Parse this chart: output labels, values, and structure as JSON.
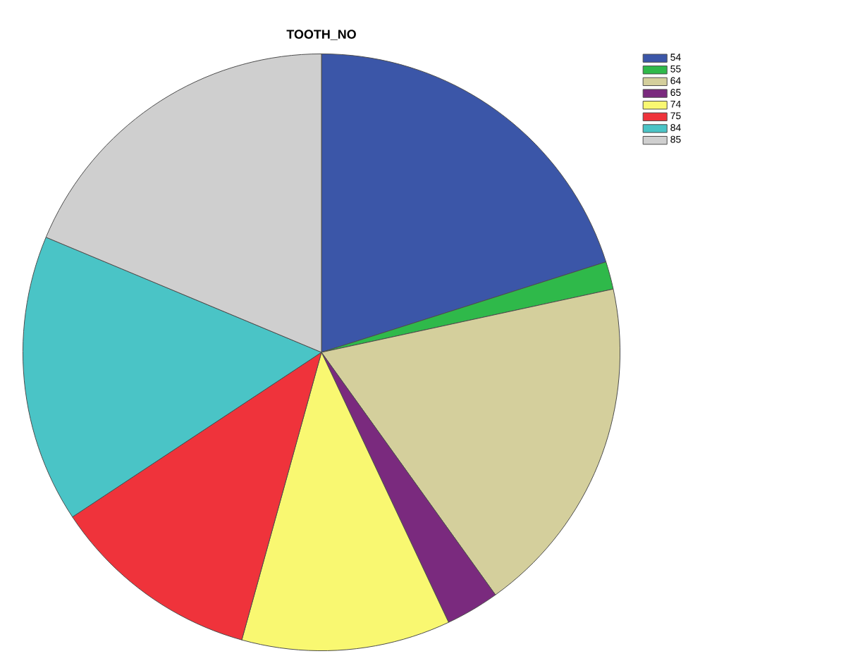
{
  "chart_data": {
    "type": "pie",
    "title": "TOOTH_NO",
    "categories": [
      "54",
      "55",
      "64",
      "65",
      "74",
      "75",
      "84",
      "85"
    ],
    "values": [
      20.1,
      1.5,
      18.5,
      2.9,
      11.3,
      11.4,
      15.6,
      18.7
    ],
    "colors": [
      "#3b56a8",
      "#2fb94a",
      "#d4cf9c",
      "#7a2a7e",
      "#f9f871",
      "#ef333b",
      "#4ac4c6",
      "#cfcfcf"
    ],
    "legend": "top right"
  }
}
